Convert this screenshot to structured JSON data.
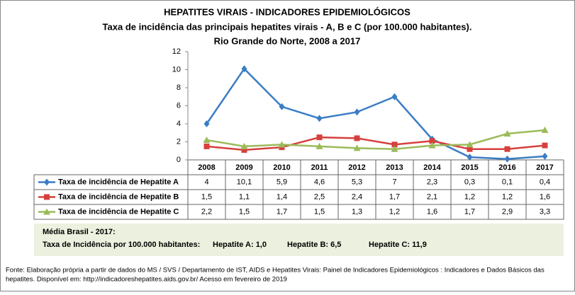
{
  "chart_data": {
    "type": "line",
    "title": "HEPATITES VIRAIS - INDICADORES EPIDEMIOLÓGICOS",
    "subtitle": [
      "Taxa de incidência das principais hepatites virais - A, B e C (por 100.000 habitantes).",
      "Rio Grande do Norte, 2008 a 2017"
    ],
    "categories": [
      "2008",
      "2009",
      "2010",
      "2011",
      "2012",
      "2013",
      "2014",
      "2015",
      "2016",
      "2017"
    ],
    "series": [
      {
        "name": "Taxa de incidência de Hepatite A",
        "color": "#3b7dc4",
        "marker": "diamond",
        "values": [
          4,
          10.1,
          5.9,
          4.6,
          5.3,
          7,
          2.3,
          0.3,
          0.1,
          0.4
        ],
        "value_labels": [
          "4",
          "10,1",
          "5,9",
          "4,6",
          "5,3",
          "7",
          "2,3",
          "0,3",
          "0,1",
          "0,4"
        ]
      },
      {
        "name": "Taxa de incidência de Hepatite B",
        "color": "#d6403c",
        "marker": "square",
        "values": [
          1.5,
          1.1,
          1.4,
          2.5,
          2.4,
          1.7,
          2.1,
          1.2,
          1.2,
          1.6
        ],
        "value_labels": [
          "1,5",
          "1,1",
          "1,4",
          "2,5",
          "2,4",
          "1,7",
          "2,1",
          "1,2",
          "1,2",
          "1,6"
        ]
      },
      {
        "name": "Taxa de incidência de Hepatite C",
        "color": "#9bbb59",
        "marker": "triangle",
        "values": [
          2.2,
          1.5,
          1.7,
          1.5,
          1.3,
          1.2,
          1.6,
          1.7,
          2.9,
          3.3
        ],
        "value_labels": [
          "2,2",
          "1,5",
          "1,7",
          "1,5",
          "1,3",
          "1,2",
          "1,6",
          "1,7",
          "2,9",
          "3,3"
        ]
      }
    ],
    "ylim": [
      0,
      12
    ],
    "yticks": [
      0,
      2,
      4,
      6,
      8,
      10,
      12
    ],
    "grid": false,
    "note": {
      "title": "Média Brasil - 2017:",
      "lines": [
        "Taxa  de Incidência  por 100.000 habitantes:",
        "Hepatite A: 1,0",
        "Hepatite B: 6,5",
        "Hepatite C: 11,9"
      ]
    },
    "source": [
      "Fonte: Elaboração própria a partir de dados do MS / SVS / Departamento de IST, AIDS e Hepatites Virais:  Painel de Indicadores Epidemiológicos : Indicadores e Dados Básicos das",
      "hepatites.  Disponível em: http://indicadoreshepatites.aids.gov.br/     Acesso em fevereiro de 2019"
    ]
  }
}
